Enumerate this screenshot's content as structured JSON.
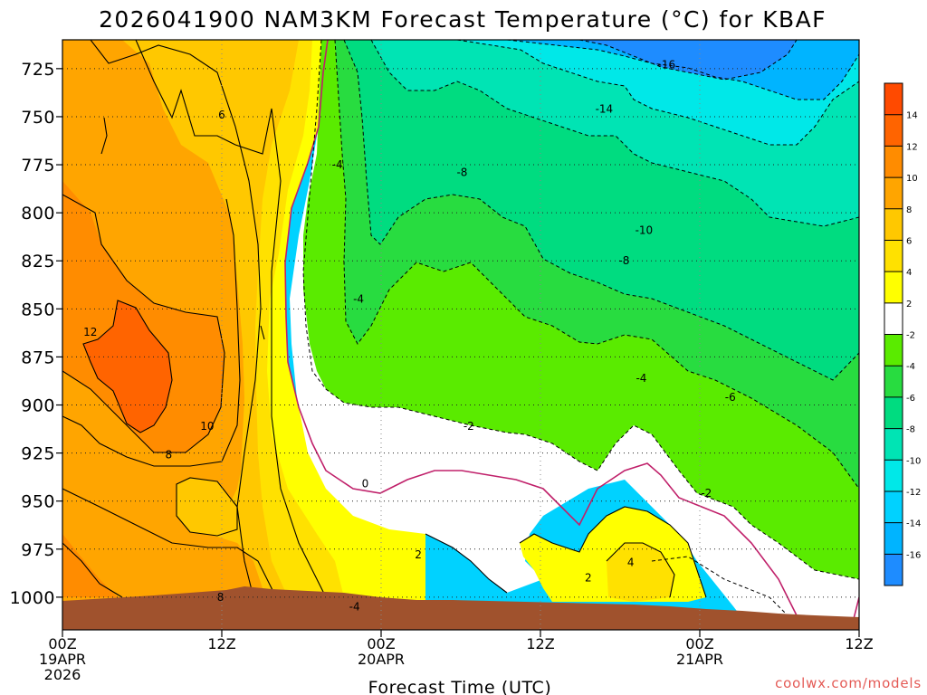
{
  "chart_data": {
    "type": "contour",
    "title": "2026041900 NAM3KM Forecast Temperature (°C) for KBAF",
    "xlabel": "Forecast Time (UTC)",
    "ylabel": "",
    "credit": "coolwx.com/models",
    "x_ticks": [
      {
        "hour": 0,
        "label": "00Z",
        "sub1": "19APR",
        "sub2": "2026"
      },
      {
        "hour": 12,
        "label": "12Z",
        "sub1": "",
        "sub2": ""
      },
      {
        "hour": 24,
        "label": "00Z",
        "sub1": "20APR",
        "sub2": ""
      },
      {
        "hour": 36,
        "label": "12Z",
        "sub1": "",
        "sub2": ""
      },
      {
        "hour": 48,
        "label": "00Z",
        "sub1": "21APR",
        "sub2": ""
      },
      {
        "hour": 60,
        "label": "12Z",
        "sub1": "",
        "sub2": ""
      }
    ],
    "xlim": [
      0,
      60
    ],
    "y_ticks": [
      725,
      750,
      775,
      800,
      825,
      850,
      875,
      900,
      925,
      950,
      975,
      1000
    ],
    "ylim_hpa": [
      1017,
      710
    ],
    "grid": true,
    "colorbar": {
      "levels": [
        -18,
        -16,
        -14,
        -12,
        -10,
        -8,
        -6,
        -4,
        -2,
        2,
        4,
        6,
        8,
        10,
        12,
        14,
        16
      ],
      "labels": [
        -16,
        -14,
        -12,
        -10,
        -8,
        -6,
        -4,
        -2,
        2,
        4,
        6,
        8,
        10,
        12,
        14
      ],
      "colors": [
        "#1e8cff",
        "#00b4ff",
        "#00d2ff",
        "#00e8e8",
        "#00e4b4",
        "#00dc80",
        "#28dc40",
        "#5aeb00",
        "#ffffff",
        "#ffff00",
        "#ffe100",
        "#ffc800",
        "#ffa500",
        "#ff8c00",
        "#ff6400",
        "#ff4a00"
      ]
    },
    "contour_labels": [
      {
        "value": "-16",
        "hour": 45.5,
        "hpa": 723
      },
      {
        "value": "-14",
        "hour": 40.8,
        "hpa": 746
      },
      {
        "value": "6",
        "hour": 12.0,
        "hpa": 749
      },
      {
        "value": "-4",
        "hour": 20.7,
        "hpa": 775
      },
      {
        "value": "-8",
        "hour": 30.1,
        "hpa": 779
      },
      {
        "value": "-10",
        "hour": 43.8,
        "hpa": 809
      },
      {
        "value": "-8",
        "hour": 42.3,
        "hpa": 825
      },
      {
        "value": "-4",
        "hour": 22.3,
        "hpa": 845
      },
      {
        "value": "12",
        "hour": 2.1,
        "hpa": 862
      },
      {
        "value": "-4",
        "hour": 43.6,
        "hpa": 886
      },
      {
        "value": "-6",
        "hour": 50.3,
        "hpa": 896
      },
      {
        "value": "10",
        "hour": 10.9,
        "hpa": 911
      },
      {
        "value": "-2",
        "hour": 30.6,
        "hpa": 911
      },
      {
        "value": "8",
        "hour": 8.0,
        "hpa": 926
      },
      {
        "value": "0",
        "hour": 22.8,
        "hpa": 941
      },
      {
        "value": "-2",
        "hour": 48.5,
        "hpa": 946
      },
      {
        "value": "2",
        "hour": 26.8,
        "hpa": 978
      },
      {
        "value": "4",
        "hour": 42.8,
        "hpa": 982
      },
      {
        "value": "2",
        "hour": 39.6,
        "hpa": 990
      },
      {
        "value": "8",
        "hour": 11.9,
        "hpa": 1000
      },
      {
        "value": "-4",
        "hour": 22.0,
        "hpa": 1005
      }
    ]
  }
}
